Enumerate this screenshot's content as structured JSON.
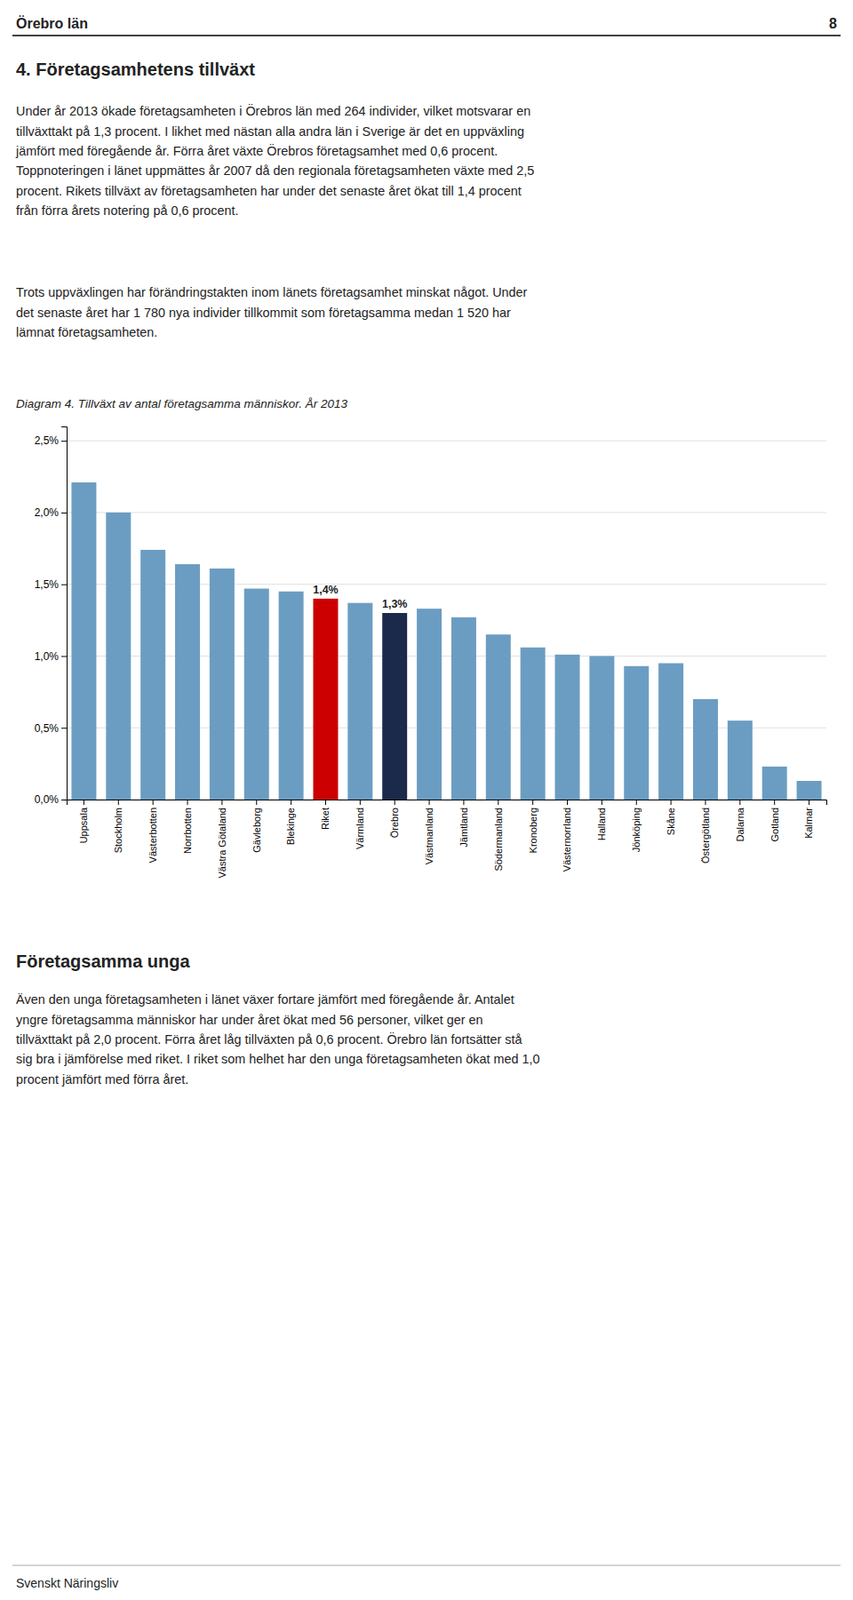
{
  "page": {
    "header_left": "Örebro län",
    "header_right": "8",
    "section_title": "4.  Företagsamhetens tillväxt",
    "body1": "Under år 2013 ökade företagsamheten i Örebros län med 264 individer, vilket motsvarar en\ntillväxttakt på 1,3 procent. I likhet med nästan alla andra län i Sverige är det en uppväxling\njämfört med föregående år. Förra året växte Örebros företagsamhet med 0,6 procent.\nToppnoteringen i länet uppmättes år 2007 då den regionala företagsamheten växte med 2,5\nprocent. Rikets tillväxt av företagsamheten har under det senaste året ökat till 1,4 procent\nfrån förra årets notering på 0,6 procent.",
    "body2": "Trots uppväxlingen har förändringstakten inom länets företagsamhet minskat något. Under\ndet senaste året har 1 780 nya individer tillkommit som företagsamma medan 1 520 har\nlämnat företagsamheten.",
    "section2_title": "Företagsamma unga",
    "body3": "Även den unga företagsamheten i länet växer fortare jämfört med föregående år. Antalet\nyngre företagsamma människor har under året ökat med 56 personer, vilket ger en\ntillväxttakt på 2,0 procent. Förra året låg tillväxten på 0,6 procent. Örebro län fortsätter stå\nsig bra i jämförelse med riket. I riket som helhet har den unga företagsamheten ökat med 1,0\nprocent jämfört med förra året.",
    "footer": "Svenskt Näringsliv"
  },
  "chart_data": {
    "type": "bar",
    "title": "Diagram 4. Tillväxt av antal företagsamma människor. År 2013",
    "categories": [
      "Uppsala",
      "Stockholm",
      "Västerbotten",
      "Norrbotten",
      "Västra Götaland",
      "Gävleborg",
      "Blekinge",
      "Riket",
      "Värmland",
      "Örebro",
      "Västmanland",
      "Jämtland",
      "Södermanland",
      "Kronoberg",
      "Västernorrland",
      "Halland",
      "Jönköping",
      "Skåne",
      "Östergötland",
      "Dalarna",
      "Gotland",
      "Kalmar"
    ],
    "values": [
      2.21,
      2.0,
      1.74,
      1.64,
      1.61,
      1.47,
      1.45,
      1.4,
      1.37,
      1.3,
      1.33,
      1.27,
      1.15,
      1.06,
      1.01,
      1.0,
      0.93,
      0.95,
      0.7,
      0.55,
      0.23,
      0.13
    ],
    "colors": [
      "#6B9DC2",
      "#6B9DC2",
      "#6B9DC2",
      "#6B9DC2",
      "#6B9DC2",
      "#6B9DC2",
      "#6B9DC2",
      "#CC0000",
      "#6B9DC2",
      "#1B2A4A",
      "#6B9DC2",
      "#6B9DC2",
      "#6B9DC2",
      "#6B9DC2",
      "#6B9DC2",
      "#6B9DC2",
      "#6B9DC2",
      "#6B9DC2",
      "#6B9DC2",
      "#6B9DC2",
      "#6B9DC2",
      "#6B9DC2"
    ],
    "ylim": [
      0,
      2.6
    ],
    "yticks": [
      {
        "value": 0,
        "label": "0,0%"
      },
      {
        "value": 0.5,
        "label": "0,5%"
      },
      {
        "value": 1.0,
        "label": "1,0%"
      },
      {
        "value": 1.5,
        "label": "1,5%"
      },
      {
        "value": 2.0,
        "label": "2,0%"
      },
      {
        "value": 2.5,
        "label": "2,5%"
      }
    ],
    "grid": true,
    "annotations": [
      {
        "text": "1,4%",
        "category": "Riket"
      },
      {
        "text": "1,3%",
        "category": "Örebro"
      }
    ]
  }
}
